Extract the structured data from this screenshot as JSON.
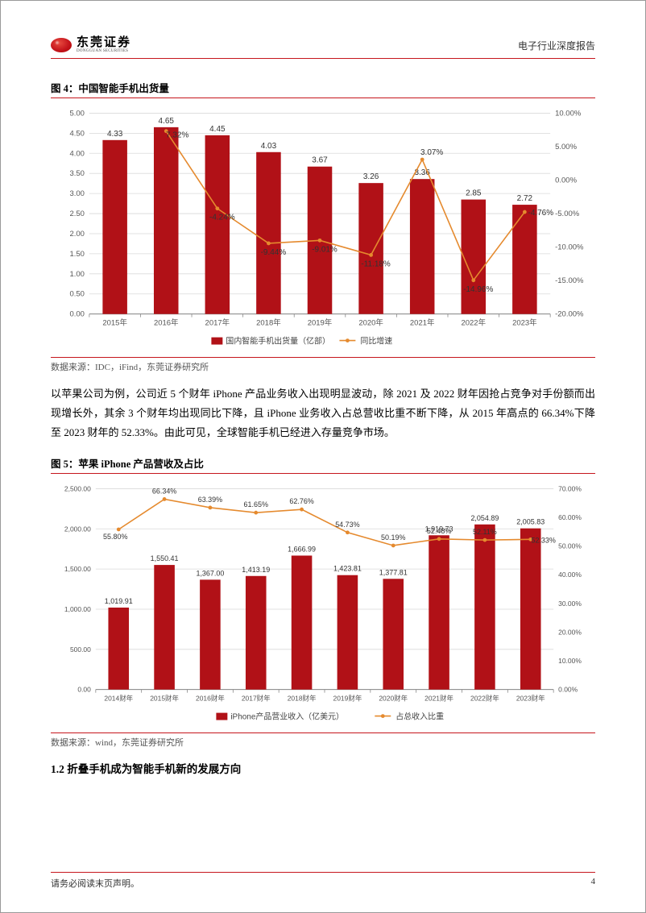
{
  "header": {
    "logo_cn": "东莞证券",
    "logo_en": "DONGGUAN SECURITIES",
    "right": "电子行业深度报告"
  },
  "colors": {
    "brand_red": "#c6161d",
    "bar_red": "#b11117",
    "line_orange": "#e58a2e",
    "grid": "#d9d9d9",
    "axis": "#888888",
    "bg": "#ffffff"
  },
  "chart1": {
    "title": "图 4：中国智能手机出货量",
    "type": "bar+line",
    "categories": [
      "2015年",
      "2016年",
      "2017年",
      "2018年",
      "2019年",
      "2020年",
      "2021年",
      "2022年",
      "2023年"
    ],
    "bar_values": [
      4.33,
      4.65,
      4.45,
      4.03,
      3.67,
      3.26,
      3.36,
      2.85,
      2.72
    ],
    "line_values_pct": [
      null,
      7.32,
      -4.24,
      -9.44,
      -9.01,
      -11.18,
      3.07,
      -14.96,
      -4.76
    ],
    "line_labels": [
      "",
      "7.32%",
      "-4.24%",
      "-9.44%",
      "-9.01%",
      "-11.18%",
      "3.07%",
      "-14.96%",
      "-4.76%"
    ],
    "y_left": {
      "min": 0,
      "max": 5.0,
      "step": 0.5
    },
    "y_right": {
      "min": -20,
      "max": 10,
      "step": 5
    },
    "legend": [
      "国内智能手机出货量（亿部）",
      "同比增速"
    ],
    "source": "数据来源：IDC，iFind，东莞证券研究所",
    "bar_color": "#b11117",
    "line_color": "#e58a2e",
    "bar_width_ratio": 0.48,
    "label_fontsize": 10,
    "axis_fontsize": 9.5
  },
  "para1": "以苹果公司为例，公司近 5 个财年 iPhone 产品业务收入出现明显波动，除 2021 及 2022 财年因抢占竞争对手份额而出现增长外，其余 3 个财年均出现同比下降，且 iPhone 业务收入占总营收比重不断下降，从 2015 年高点的 66.34%下降至 2023 财年的 52.33%。由此可见，全球智能手机已经进入存量竞争市场。",
  "chart2": {
    "title": "图 5：苹果 iPhone 产品营收及占比",
    "type": "bar+line",
    "categories": [
      "2014财年",
      "2015财年",
      "2016财年",
      "2017财年",
      "2018财年",
      "2019财年",
      "2020财年",
      "2021财年",
      "2022财年",
      "2023财年"
    ],
    "bar_values": [
      1019.91,
      1550.41,
      1367.0,
      1413.19,
      1666.99,
      1423.81,
      1377.81,
      1919.73,
      2054.89,
      2005.83
    ],
    "line_values_pct": [
      55.8,
      66.34,
      63.39,
      61.65,
      62.76,
      54.73,
      50.19,
      52.48,
      52.11,
      52.33
    ],
    "line_labels": [
      "55.80%",
      "66.34%",
      "63.39%",
      "61.65%",
      "62.76%",
      "54.73%",
      "50.19%",
      "52.48%",
      "52.11%",
      "52.33%"
    ],
    "y_left": {
      "min": 0,
      "max": 2500,
      "step": 500
    },
    "y_right": {
      "min": 0,
      "max": 70,
      "step": 10
    },
    "legend": [
      "iPhone产品营业收入（亿美元）",
      "占总收入比重"
    ],
    "source": "数据来源：wind，东莞证券研究所",
    "bar_color": "#b11117",
    "line_color": "#e58a2e",
    "bar_width_ratio": 0.45,
    "label_fontsize": 9,
    "axis_fontsize": 8.5
  },
  "section": "1.2 折叠手机成为智能手机新的发展方向",
  "footer": {
    "left": "请务必阅读末页声明。",
    "page": "4"
  }
}
